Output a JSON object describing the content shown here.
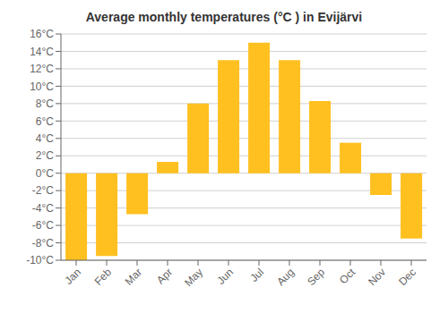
{
  "chart_data": {
    "type": "bar",
    "title": "Average monthly temperatures (°C ) in Evijärvi",
    "categories": [
      "Jan",
      "Feb",
      "Mar",
      "Apr",
      "May",
      "Jun",
      "Jul",
      "Aug",
      "Sep",
      "Oct",
      "Nov",
      "Dec"
    ],
    "values": [
      -10.0,
      -9.5,
      -4.7,
      1.3,
      8.0,
      13.0,
      15.0,
      13.0,
      8.3,
      3.5,
      -2.5,
      -7.5
    ],
    "color": "#FFC020",
    "ylim": [
      -10,
      16
    ],
    "yticks": [
      {
        "value": -10,
        "label": "-10°C"
      },
      {
        "value": -8,
        "label": "-8°C"
      },
      {
        "value": -6,
        "label": "-6°C"
      },
      {
        "value": -4,
        "label": "-4°C"
      },
      {
        "value": -2,
        "label": "-2°C"
      },
      {
        "value": 0,
        "label": "0°C"
      },
      {
        "value": 2,
        "label": "2°C"
      },
      {
        "value": 4,
        "label": "4°C"
      },
      {
        "value": 6,
        "label": "6°C"
      },
      {
        "value": 8,
        "label": "8°C"
      },
      {
        "value": 10,
        "label": "10°C"
      },
      {
        "value": 12,
        "label": "12°C"
      },
      {
        "value": 14,
        "label": "14°C"
      },
      {
        "value": 16,
        "label": "16°C"
      }
    ],
    "grid": true
  }
}
